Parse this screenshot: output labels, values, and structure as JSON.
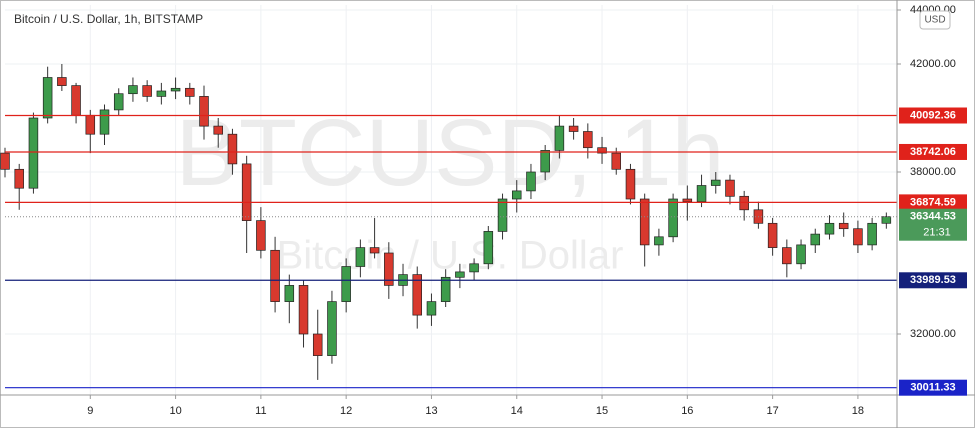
{
  "chart_data": {
    "type": "candlestick",
    "title": "Bitcoin / U.S. Dollar, 1h, BITSTAMP",
    "watermark": "BTCUSD, 1h",
    "watermark_sub": "Bitcoin / U.S. Dollar",
    "currency": "USD",
    "x": [
      0,
      4,
      8,
      12,
      16,
      20,
      24,
      28,
      32,
      36,
      40,
      44,
      48,
      52,
      56,
      60,
      64,
      68,
      72,
      76,
      80,
      84,
      88,
      92,
      96,
      100,
      104,
      108,
      112,
      116,
      120,
      124,
      128,
      132,
      136,
      140,
      144,
      148,
      152,
      156,
      160,
      164,
      168,
      172,
      176,
      180,
      184,
      188,
      192,
      196,
      200,
      204,
      208,
      212,
      216,
      220,
      224,
      228,
      232,
      236,
      240,
      244,
      248
    ],
    "open": [
      38700,
      38100,
      37400,
      40000,
      41500,
      41200,
      40100,
      39400,
      40300,
      40900,
      41200,
      40800,
      41000,
      41100,
      40800,
      39700,
      39400,
      38300,
      36200,
      35100,
      33200,
      33800,
      32000,
      31200,
      33200,
      34500,
      35200,
      35000,
      33800,
      34200,
      32700,
      33200,
      34100,
      34300,
      34600,
      35800,
      37000,
      37300,
      38000,
      38800,
      39700,
      39500,
      38900,
      38700,
      38100,
      37000,
      35300,
      35600,
      37000,
      36900,
      37500,
      37700,
      37100,
      36600,
      36100,
      35200,
      34600,
      35300,
      35700,
      36100,
      35900,
      35300,
      36100
    ],
    "high": [
      38900,
      38300,
      40200,
      41900,
      42000,
      41300,
      40300,
      40500,
      41100,
      41500,
      41400,
      41300,
      41500,
      41300,
      41200,
      40000,
      39600,
      38600,
      36700,
      35600,
      34200,
      34000,
      32900,
      33600,
      34800,
      35500,
      36300,
      35400,
      34600,
      34500,
      33500,
      34400,
      34600,
      34800,
      36000,
      37200,
      37700,
      38300,
      39000,
      40100,
      40000,
      39800,
      39300,
      38900,
      38300,
      37200,
      35900,
      37200,
      37500,
      37900,
      38000,
      37900,
      37300,
      36900,
      36300,
      35500,
      35500,
      35900,
      36400,
      36500,
      36200,
      36300,
      36500
    ],
    "low": [
      37800,
      36600,
      37200,
      39800,
      41000,
      39800,
      38700,
      39000,
      40100,
      40600,
      40600,
      40500,
      40700,
      40500,
      39200,
      38900,
      37900,
      35000,
      34800,
      32800,
      32400,
      31500,
      30300,
      30900,
      32800,
      34100,
      34800,
      33300,
      33400,
      32200,
      32300,
      33000,
      33700,
      34000,
      34400,
      35500,
      36500,
      37000,
      37700,
      38500,
      39200,
      38500,
      38300,
      37900,
      36800,
      34500,
      34900,
      35400,
      36200,
      36700,
      37200,
      36800,
      36200,
      35900,
      34900,
      34100,
      34400,
      35000,
      35500,
      35600,
      35000,
      35100,
      35900
    ],
    "close": [
      38100,
      37400,
      40000,
      41500,
      41200,
      40100,
      39400,
      40300,
      40900,
      41200,
      40800,
      41000,
      41100,
      40800,
      39700,
      39400,
      38300,
      36200,
      35100,
      33200,
      33800,
      32000,
      31200,
      33200,
      34500,
      35200,
      35000,
      33800,
      34200,
      32700,
      33200,
      34100,
      34300,
      34600,
      35800,
      37000,
      37300,
      38000,
      38800,
      39700,
      39500,
      38900,
      38700,
      38100,
      37000,
      35300,
      35600,
      37000,
      36900,
      37500,
      37700,
      37100,
      36600,
      36100,
      35200,
      34600,
      35300,
      35700,
      36100,
      35900,
      35300,
      36100,
      36344.53
    ],
    "up_color": "#3d9b4b",
    "down_color": "#d8392e",
    "xlim": [
      0,
      251
    ],
    "ylim": [
      29741,
      44185
    ],
    "xticks": [
      {
        "value": 24,
        "label": "9"
      },
      {
        "value": 48,
        "label": "10"
      },
      {
        "value": 72,
        "label": "11"
      },
      {
        "value": 96,
        "label": "12"
      },
      {
        "value": 120,
        "label": "13"
      },
      {
        "value": 144,
        "label": "14"
      },
      {
        "value": 168,
        "label": "15"
      },
      {
        "value": 192,
        "label": "16"
      },
      {
        "value": 216,
        "label": "17"
      },
      {
        "value": 240,
        "label": "18"
      }
    ],
    "yticks": [
      {
        "value": 32000,
        "label": "32000.00"
      },
      {
        "value": 38000,
        "label": "38000.00"
      },
      {
        "value": 42000,
        "label": "42000.00"
      },
      {
        "value": 44000,
        "label": "44000.00"
      }
    ],
    "grid": true,
    "levels": [
      {
        "value": 40092.36,
        "color": "#e0221b"
      },
      {
        "value": 38742.06,
        "color": "#e0221b"
      },
      {
        "value": 36874.59,
        "color": "#e0221b"
      },
      {
        "value": 33989.53,
        "color": "#14207a"
      },
      {
        "value": 30011.33,
        "color": "#1a23c8"
      }
    ],
    "last_price": {
      "value": 36344.53,
      "color": "#4b9a5a"
    },
    "countdown": "21:31"
  }
}
